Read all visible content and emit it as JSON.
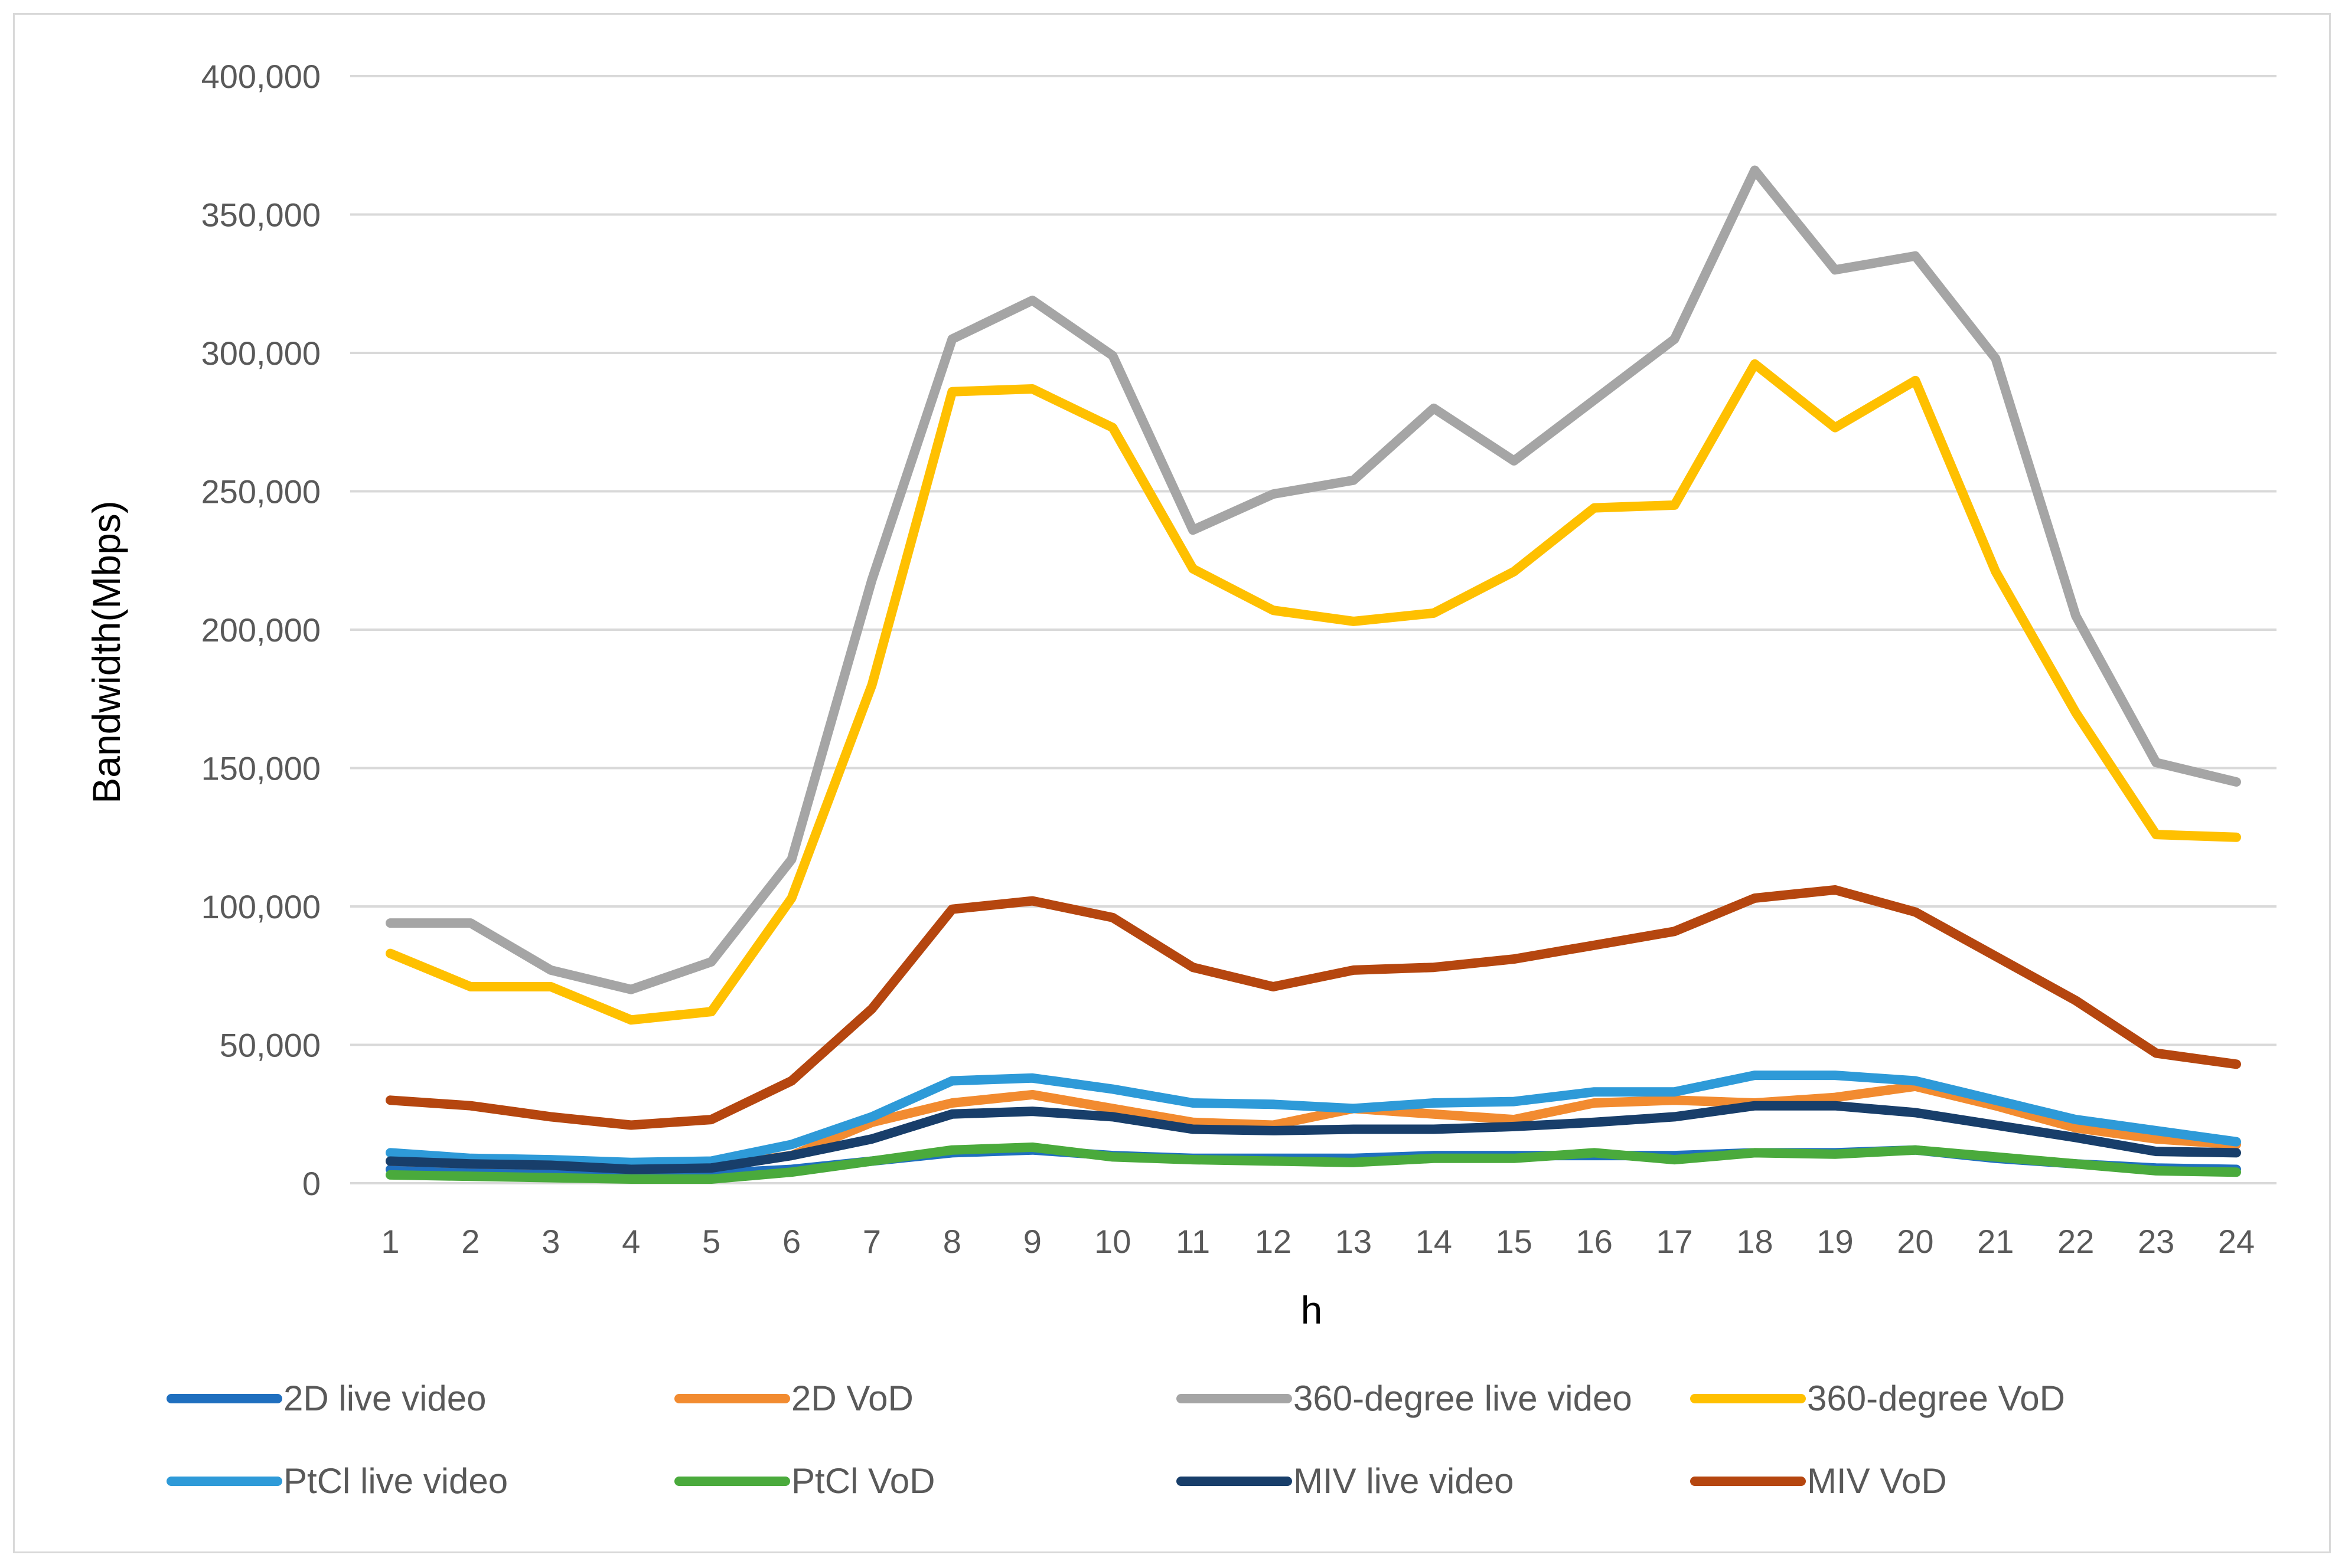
{
  "chart_data": {
    "type": "line",
    "title": "",
    "xlabel": "h",
    "ylabel": "Bandwidth(Mbps)",
    "ylim": [
      0,
      400000
    ],
    "y_ticks": [
      0,
      50000,
      100000,
      150000,
      200000,
      250000,
      300000,
      350000,
      400000
    ],
    "y_tick_labels": [
      "0",
      "50,000",
      "100,000",
      "150,000",
      "200,000",
      "250,000",
      "300,000",
      "350,000",
      "400,000"
    ],
    "categories": [
      "1",
      "2",
      "3",
      "4",
      "5",
      "6",
      "7",
      "8",
      "9",
      "10",
      "11",
      "12",
      "13",
      "14",
      "15",
      "16",
      "17",
      "18",
      "19",
      "20",
      "21",
      "22",
      "23",
      "24"
    ],
    "grid": true,
    "legend_position": "bottom",
    "series": [
      {
        "name": "2D live video",
        "color": "#1f6fbf",
        "values": [
          5000,
          4500,
          4000,
          3500,
          3500,
          5000,
          8000,
          11000,
          12000,
          10000,
          9000,
          9000,
          9000,
          10000,
          10000,
          10000,
          10000,
          11000,
          11000,
          12000,
          9000,
          7000,
          5500,
          5000
        ]
      },
      {
        "name": "2D VoD",
        "color": "#f28b30",
        "values": [
          8000,
          7000,
          6500,
          6000,
          6000,
          10000,
          22000,
          29000,
          32000,
          27000,
          22000,
          21000,
          27000,
          25000,
          23000,
          29000,
          30000,
          29000,
          31000,
          35000,
          28000,
          20000,
          16000,
          14000
        ]
      },
      {
        "name": "360-degree live video",
        "color": "#a5a5a5",
        "values": [
          94000,
          94000,
          77000,
          70000,
          80000,
          117000,
          218000,
          305000,
          319000,
          299000,
          236000,
          249000,
          254000,
          280000,
          261000,
          283000,
          305000,
          366000,
          330000,
          335000,
          298000,
          205000,
          152000,
          145000
        ]
      },
      {
        "name": "360-degree VoD",
        "color": "#ffc000",
        "values": [
          83000,
          71000,
          71000,
          59000,
          62000,
          103000,
          180000,
          286000,
          287000,
          273000,
          222000,
          207000,
          203000,
          206000,
          221000,
          244000,
          245000,
          296000,
          273000,
          290000,
          221000,
          170000,
          126000,
          125000
        ]
      },
      {
        "name": "PtCl live video",
        "color": "#2e9ad8",
        "values": [
          11000,
          9000,
          8500,
          7500,
          8000,
          14000,
          24000,
          37000,
          38000,
          34000,
          29000,
          28500,
          27000,
          29000,
          29500,
          33000,
          33000,
          39000,
          39000,
          37000,
          30000,
          23000,
          19000,
          15000
        ]
      },
      {
        "name": "PtCl VoD",
        "color": "#4aaa3c",
        "values": [
          3000,
          2500,
          2000,
          1500,
          1500,
          4000,
          8000,
          12000,
          13000,
          9500,
          8500,
          8000,
          7500,
          9000,
          9000,
          11000,
          8500,
          11000,
          10500,
          12000,
          9500,
          7000,
          4500,
          4000
        ]
      },
      {
        "name": "MIV live video",
        "color": "#183e6a",
        "values": [
          8000,
          7000,
          6500,
          5000,
          5500,
          10000,
          16000,
          25000,
          26000,
          24000,
          19500,
          19000,
          19500,
          19500,
          20500,
          22000,
          24000,
          28000,
          28000,
          25500,
          21000,
          16500,
          11500,
          11000
        ]
      },
      {
        "name": "MIV VoD",
        "color": "#b5460f",
        "values": [
          30000,
          28000,
          24000,
          21000,
          23000,
          37000,
          63000,
          99000,
          102000,
          96000,
          78000,
          71000,
          77000,
          78000,
          81000,
          86000,
          91000,
          103000,
          106000,
          98000,
          82000,
          66000,
          47000,
          43000
        ]
      }
    ]
  }
}
